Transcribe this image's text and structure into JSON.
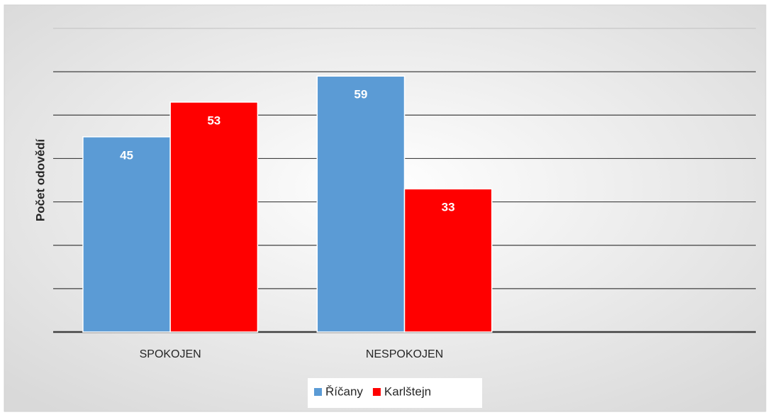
{
  "chart_data": {
    "type": "bar",
    "y_label": "Počet odovědí",
    "categories": [
      "SPOKOJEN",
      "NESPOKOJEN",
      null
    ],
    "series": [
      {
        "name": "Říčany",
        "color": "#5b9bd5",
        "values": [
          45,
          59,
          null
        ]
      },
      {
        "name": "Karlštejn",
        "color": "#ff0000",
        "values": [
          53,
          33,
          null
        ]
      }
    ],
    "ylim": [
      0,
      70
    ],
    "yticks": [
      0,
      10,
      20,
      30,
      40,
      50,
      60,
      70
    ],
    "grid": true,
    "legend": "bottom"
  }
}
